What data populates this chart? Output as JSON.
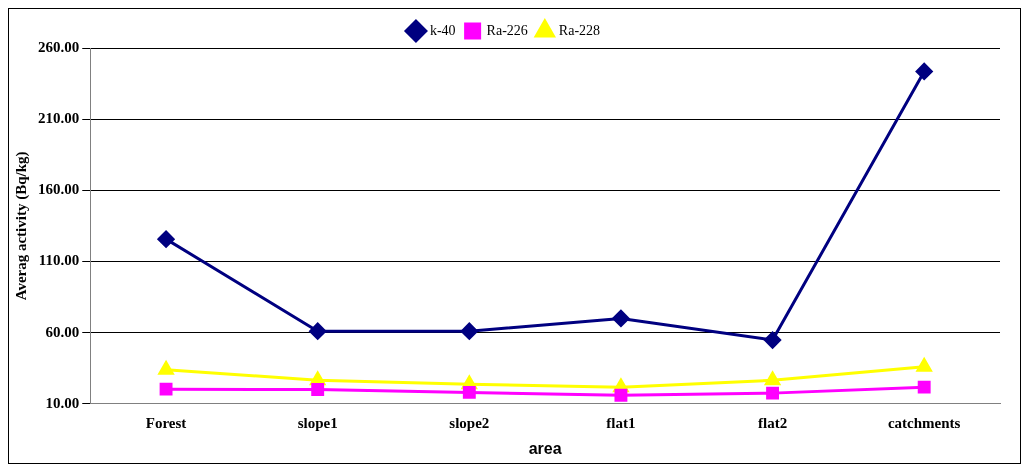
{
  "chart_data": {
    "type": "line",
    "xlabel": "area",
    "ylabel": "Averag activity (Bq/kg)",
    "categories": [
      "Forest",
      "slope1",
      "slope2",
      "flat1",
      "flat2",
      "catchments"
    ],
    "series": [
      {
        "name": "k-40",
        "color": "#000080",
        "marker": "diamond",
        "values": [
          125.7,
          61,
          61,
          70,
          54.8,
          243.5
        ]
      },
      {
        "name": "Ra-226",
        "color": "#ff00ff",
        "marker": "square",
        "values": [
          20.3,
          20,
          18,
          16,
          17.5,
          21.7
        ]
      },
      {
        "name": "Ra-228",
        "color": "#ffff00",
        "marker": "triangle",
        "values": [
          34,
          26.5,
          23.8,
          21.7,
          26.5,
          36
        ]
      }
    ],
    "ylim": [
      10,
      260
    ],
    "yticks": [
      {
        "value": 10,
        "label": "10.00"
      },
      {
        "value": 60,
        "label": "60.00"
      },
      {
        "value": 110,
        "label": "110.00"
      },
      {
        "value": 160,
        "label": "160.00"
      },
      {
        "value": 210,
        "label": "210.00"
      },
      {
        "value": 260,
        "label": "260.00"
      }
    ],
    "grid": "y",
    "legend": "top",
    "line_style": "solid"
  }
}
